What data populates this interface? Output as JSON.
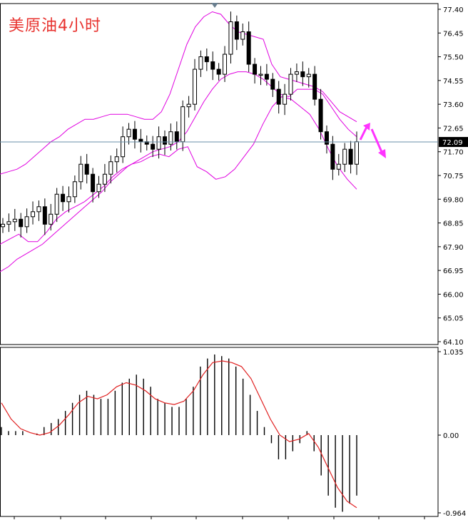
{
  "title": "美原油4小时",
  "current_price_label": "72.09",
  "colors": {
    "background": "#ffffff",
    "candle": "#000000",
    "bollinger": "#e000e0",
    "macd_signal": "#e02020",
    "arrow": "#ff33ff",
    "price_line": "#6a8fa8",
    "title": "#e8322e",
    "current_price_box": "#000000"
  },
  "chart_data": [
    {
      "type": "candlestick",
      "title": "美原油4小时",
      "y_ticks": [
        "77.40",
        "76.45",
        "75.50",
        "74.55",
        "73.60",
        "72.65",
        "71.70",
        "70.75",
        "69.80",
        "68.85",
        "67.90",
        "66.95",
        "66.00",
        "65.05",
        "64.10"
      ],
      "ylim": [
        64.1,
        77.4
      ],
      "current_price": 72.09,
      "closes": [
        68.8,
        68.9,
        69.0,
        68.7,
        69.1,
        69.3,
        69.5,
        68.8,
        69.2,
        70.0,
        69.7,
        69.9,
        70.5,
        71.2,
        70.8,
        70.1,
        70.4,
        70.8,
        71.3,
        71.5,
        72.3,
        72.6,
        72.2,
        72.1,
        72.0,
        71.8,
        72.3,
        72.0,
        72.5,
        72.1,
        73.5,
        73.6,
        75.0,
        75.5,
        75.3,
        75.0,
        74.8,
        75.6,
        76.9,
        76.2,
        76.5,
        75.2,
        74.8,
        74.8,
        74.6,
        74.2,
        73.6,
        74.0,
        74.8,
        74.9,
        74.7,
        74.8,
        73.8,
        72.5,
        72.0,
        71.0,
        71.2,
        71.8,
        71.2,
        72.1
      ],
      "bollinger_upper": [
        70.8,
        70.9,
        71.0,
        71.2,
        71.5,
        71.8,
        72.1,
        72.3,
        72.6,
        72.8,
        73.0,
        73.0,
        73.1,
        73.2,
        73.2,
        73.2,
        73.1,
        73.0,
        73.0,
        73.3,
        74.0,
        75.0,
        76.0,
        76.7,
        77.1,
        77.3,
        77.2,
        76.8,
        76.5,
        76.4,
        76.3,
        76.2,
        75.2,
        74.7,
        74.6,
        74.5,
        74.4,
        74.3,
        74.1,
        73.7,
        73.3,
        73.1,
        72.9
      ],
      "bollinger_middle": [
        66.9,
        67.1,
        67.4,
        67.6,
        67.8,
        68.0,
        68.3,
        68.6,
        68.9,
        69.2,
        69.5,
        69.8,
        70.1,
        70.5,
        70.8,
        71.1,
        71.3,
        71.5,
        71.7,
        71.8,
        71.9,
        72.1,
        72.5,
        73.1,
        73.7,
        74.2,
        74.6,
        74.8,
        74.9,
        74.9,
        74.8,
        74.6,
        74.3,
        74.0,
        73.9,
        74.2,
        74.2,
        74.2,
        74.0,
        73.5,
        73.0,
        72.6,
        72.3
      ],
      "bollinger_lower": [
        68.0,
        68.2,
        68.4,
        68.1,
        68.1,
        68.5,
        69.0,
        69.3,
        69.5,
        69.7,
        70.0,
        70.3,
        70.7,
        71.0,
        71.2,
        71.3,
        71.5,
        71.6,
        71.5,
        71.8,
        71.9,
        71.1,
        70.9,
        70.6,
        70.7,
        71.0,
        71.5,
        72.0,
        72.8,
        73.5,
        73.9,
        73.8,
        73.5,
        73.2,
        72.6,
        71.8,
        71.1,
        70.6,
        70.2
      ]
    },
    {
      "type": "bar",
      "title": "MACD",
      "y_ticks": [
        "1.035",
        "0.00",
        "-0.964"
      ],
      "ylim": [
        -0.964,
        1.035
      ],
      "histogram": [
        0.1,
        0.05,
        0.05,
        0.05,
        0.0,
        0.02,
        0.1,
        0.15,
        0.2,
        0.3,
        0.4,
        0.5,
        0.55,
        0.5,
        0.45,
        0.45,
        0.55,
        0.65,
        0.7,
        0.75,
        0.7,
        0.6,
        0.45,
        0.4,
        0.35,
        0.35,
        0.45,
        0.6,
        0.85,
        0.95,
        1.0,
        0.98,
        0.95,
        0.85,
        0.7,
        0.5,
        0.3,
        0.1,
        -0.1,
        -0.3,
        -0.3,
        -0.2,
        -0.1,
        0.05,
        -0.2,
        -0.5,
        -0.75,
        -0.9,
        -0.95,
        -0.85,
        -0.75
      ],
      "signal": [
        0.4,
        0.2,
        0.08,
        0.03,
        0.0,
        0.03,
        0.12,
        0.25,
        0.4,
        0.48,
        0.45,
        0.5,
        0.6,
        0.65,
        0.62,
        0.55,
        0.45,
        0.4,
        0.38,
        0.42,
        0.55,
        0.75,
        0.9,
        0.92,
        0.9,
        0.85,
        0.7,
        0.45,
        0.2,
        0.0,
        -0.08,
        -0.05,
        0.02,
        -0.15,
        -0.4,
        -0.65,
        -0.82,
        -0.9
      ]
    }
  ]
}
